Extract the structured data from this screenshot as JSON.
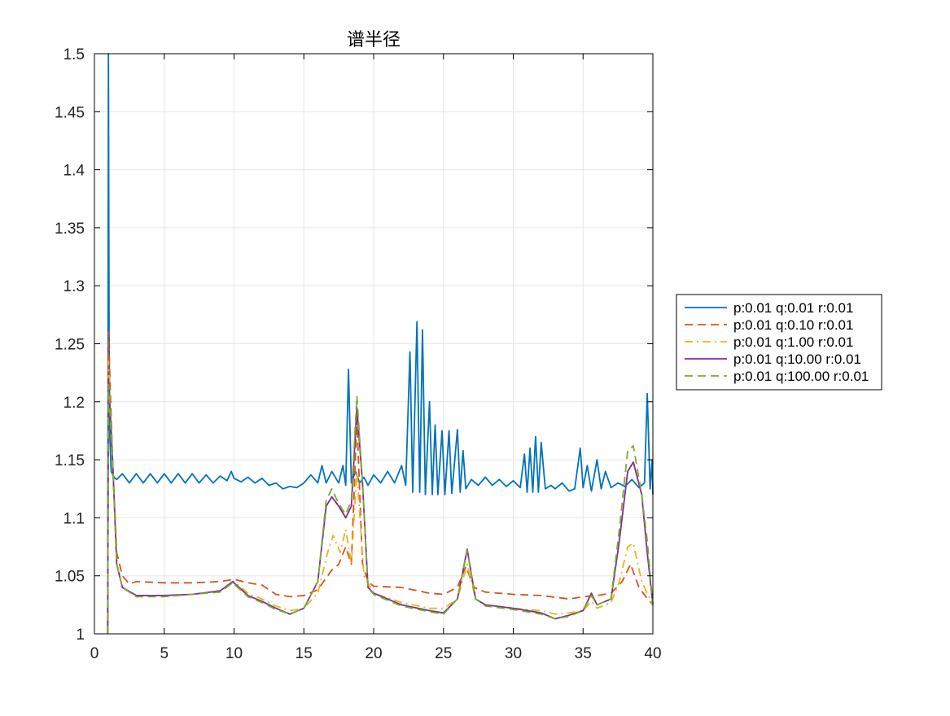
{
  "chart_data": {
    "type": "line",
    "title": "谱半径",
    "xlabel": "",
    "ylabel": "",
    "xlim": [
      0,
      40
    ],
    "ylim": [
      1,
      1.5
    ],
    "grid": true,
    "legend_position": "outside-right",
    "x_ticks": [
      "0",
      "5",
      "10",
      "15",
      "20",
      "25",
      "30",
      "35",
      "40"
    ],
    "y_ticks": [
      "1",
      "1.05",
      "1.1",
      "1.15",
      "1.2",
      "1.25",
      "1.3",
      "1.35",
      "1.4",
      "1.45",
      "1.5"
    ],
    "series": [
      {
        "name": "p:0.01 q:0.01 r:0.01",
        "color": "#0072BD",
        "dash": "solid",
        "points": [
          [
            0.95,
            1.0
          ],
          [
            1.0,
            1.5
          ],
          [
            1.05,
            1.26
          ],
          [
            1.1,
            1.17
          ],
          [
            1.2,
            1.14
          ],
          [
            1.4,
            1.135
          ],
          [
            1.6,
            1.133
          ],
          [
            2.0,
            1.138
          ],
          [
            2.5,
            1.13
          ],
          [
            3.0,
            1.138
          ],
          [
            3.5,
            1.13
          ],
          [
            4.0,
            1.138
          ],
          [
            4.5,
            1.13
          ],
          [
            5.0,
            1.138
          ],
          [
            5.5,
            1.13
          ],
          [
            6.0,
            1.138
          ],
          [
            6.5,
            1.13
          ],
          [
            7.0,
            1.138
          ],
          [
            7.5,
            1.13
          ],
          [
            8.0,
            1.137
          ],
          [
            8.5,
            1.13
          ],
          [
            9.0,
            1.136
          ],
          [
            9.5,
            1.132
          ],
          [
            9.8,
            1.14
          ],
          [
            10.0,
            1.134
          ],
          [
            10.5,
            1.131
          ],
          [
            11.0,
            1.135
          ],
          [
            11.5,
            1.13
          ],
          [
            12.0,
            1.134
          ],
          [
            12.5,
            1.128
          ],
          [
            13.0,
            1.13
          ],
          [
            13.5,
            1.125
          ],
          [
            14.0,
            1.127
          ],
          [
            14.5,
            1.126
          ],
          [
            15.0,
            1.13
          ],
          [
            15.5,
            1.137
          ],
          [
            16.0,
            1.13
          ],
          [
            16.3,
            1.145
          ],
          [
            16.6,
            1.13
          ],
          [
            17.0,
            1.14
          ],
          [
            17.5,
            1.13
          ],
          [
            17.8,
            1.145
          ],
          [
            18.0,
            1.128
          ],
          [
            18.2,
            1.228
          ],
          [
            18.4,
            1.13
          ],
          [
            18.7,
            1.14
          ],
          [
            19.0,
            1.13
          ],
          [
            19.3,
            1.135
          ],
          [
            19.6,
            1.128
          ],
          [
            20.0,
            1.137
          ],
          [
            20.5,
            1.13
          ],
          [
            21.0,
            1.14
          ],
          [
            21.5,
            1.13
          ],
          [
            22.0,
            1.145
          ],
          [
            22.3,
            1.128
          ],
          [
            22.6,
            1.243
          ],
          [
            22.8,
            1.122
          ],
          [
            23.1,
            1.269
          ],
          [
            23.3,
            1.122
          ],
          [
            23.5,
            1.262
          ],
          [
            23.7,
            1.12
          ],
          [
            24.0,
            1.2
          ],
          [
            24.2,
            1.12
          ],
          [
            24.4,
            1.18
          ],
          [
            24.6,
            1.12
          ],
          [
            24.9,
            1.175
          ],
          [
            25.1,
            1.12
          ],
          [
            25.4,
            1.175
          ],
          [
            25.6,
            1.121
          ],
          [
            26.0,
            1.176
          ],
          [
            26.2,
            1.122
          ],
          [
            26.4,
            1.158
          ],
          [
            26.6,
            1.125
          ],
          [
            27.0,
            1.133
          ],
          [
            27.5,
            1.128
          ],
          [
            28.0,
            1.135
          ],
          [
            28.5,
            1.128
          ],
          [
            29.0,
            1.133
          ],
          [
            29.5,
            1.127
          ],
          [
            30.0,
            1.132
          ],
          [
            30.5,
            1.126
          ],
          [
            30.8,
            1.155
          ],
          [
            31.0,
            1.122
          ],
          [
            31.2,
            1.16
          ],
          [
            31.4,
            1.122
          ],
          [
            31.6,
            1.17
          ],
          [
            31.8,
            1.122
          ],
          [
            32.0,
            1.165
          ],
          [
            32.3,
            1.125
          ],
          [
            32.7,
            1.128
          ],
          [
            33.0,
            1.125
          ],
          [
            33.5,
            1.13
          ],
          [
            34.0,
            1.123
          ],
          [
            34.4,
            1.125
          ],
          [
            34.8,
            1.16
          ],
          [
            35.0,
            1.126
          ],
          [
            35.3,
            1.145
          ],
          [
            35.6,
            1.123
          ],
          [
            36.0,
            1.15
          ],
          [
            36.3,
            1.125
          ],
          [
            36.6,
            1.14
          ],
          [
            37.0,
            1.126
          ],
          [
            37.5,
            1.13
          ],
          [
            38.0,
            1.127
          ],
          [
            38.5,
            1.133
          ],
          [
            39.0,
            1.126
          ],
          [
            39.4,
            1.13
          ],
          [
            39.6,
            1.207
          ],
          [
            39.8,
            1.125
          ],
          [
            39.95,
            1.15
          ],
          [
            40.0,
            1.12
          ]
        ]
      },
      {
        "name": "p:0.01 q:0.10 r:0.01",
        "color": "#D95319",
        "dash": "dashed",
        "points": [
          [
            0.95,
            1.0
          ],
          [
            1.0,
            1.26
          ],
          [
            1.3,
            1.15
          ],
          [
            1.6,
            1.07
          ],
          [
            2.0,
            1.05
          ],
          [
            2.5,
            1.043
          ],
          [
            3.0,
            1.045
          ],
          [
            5.0,
            1.044
          ],
          [
            7.0,
            1.044
          ],
          [
            9.0,
            1.045
          ],
          [
            10.0,
            1.047
          ],
          [
            11.0,
            1.044
          ],
          [
            12.0,
            1.042
          ],
          [
            13.0,
            1.034
          ],
          [
            14.0,
            1.032
          ],
          [
            15.0,
            1.033
          ],
          [
            16.0,
            1.038
          ],
          [
            17.0,
            1.055
          ],
          [
            17.5,
            1.06
          ],
          [
            18.0,
            1.075
          ],
          [
            18.4,
            1.06
          ],
          [
            18.8,
            1.185
          ],
          [
            19.2,
            1.06
          ],
          [
            19.6,
            1.045
          ],
          [
            20.0,
            1.041
          ],
          [
            22.0,
            1.04
          ],
          [
            24.0,
            1.035
          ],
          [
            25.0,
            1.034
          ],
          [
            26.0,
            1.04
          ],
          [
            26.6,
            1.058
          ],
          [
            27.2,
            1.04
          ],
          [
            28.0,
            1.036
          ],
          [
            30.0,
            1.034
          ],
          [
            32.0,
            1.033
          ],
          [
            34.0,
            1.03
          ],
          [
            35.0,
            1.032
          ],
          [
            36.0,
            1.033
          ],
          [
            37.0,
            1.035
          ],
          [
            37.8,
            1.045
          ],
          [
            38.4,
            1.06
          ],
          [
            39.0,
            1.04
          ],
          [
            39.5,
            1.032
          ],
          [
            40.0,
            1.025
          ]
        ]
      },
      {
        "name": "p:0.01 q:1.00 r:0.01",
        "color": "#EDB120",
        "dash": "dashdot",
        "points": [
          [
            0.95,
            1.0
          ],
          [
            1.0,
            1.235
          ],
          [
            1.3,
            1.15
          ],
          [
            1.6,
            1.06
          ],
          [
            2.0,
            1.04
          ],
          [
            3.0,
            1.033
          ],
          [
            5.0,
            1.033
          ],
          [
            7.0,
            1.034
          ],
          [
            9.0,
            1.037
          ],
          [
            10.0,
            1.045
          ],
          [
            11.0,
            1.035
          ],
          [
            12.0,
            1.03
          ],
          [
            13.0,
            1.024
          ],
          [
            14.0,
            1.02
          ],
          [
            15.0,
            1.022
          ],
          [
            16.0,
            1.035
          ],
          [
            16.7,
            1.07
          ],
          [
            17.1,
            1.085
          ],
          [
            17.6,
            1.07
          ],
          [
            18.0,
            1.09
          ],
          [
            18.4,
            1.06
          ],
          [
            18.8,
            1.14
          ],
          [
            19.3,
            1.05
          ],
          [
            20.0,
            1.035
          ],
          [
            22.0,
            1.027
          ],
          [
            24.0,
            1.022
          ],
          [
            25.0,
            1.022
          ],
          [
            26.0,
            1.03
          ],
          [
            26.7,
            1.06
          ],
          [
            27.3,
            1.03
          ],
          [
            28.0,
            1.025
          ],
          [
            30.0,
            1.022
          ],
          [
            32.0,
            1.02
          ],
          [
            33.0,
            1.017
          ],
          [
            34.0,
            1.018
          ],
          [
            35.0,
            1.02
          ],
          [
            35.6,
            1.028
          ],
          [
            36.0,
            1.022
          ],
          [
            37.0,
            1.027
          ],
          [
            37.6,
            1.045
          ],
          [
            38.2,
            1.075
          ],
          [
            38.6,
            1.078
          ],
          [
            39.2,
            1.045
          ],
          [
            39.6,
            1.035
          ],
          [
            40.0,
            1.025
          ]
        ]
      },
      {
        "name": "p:0.01 q:10.00 r:0.01",
        "color": "#7E2F8E",
        "dash": "solid",
        "points": [
          [
            0.95,
            1.0
          ],
          [
            1.0,
            1.22
          ],
          [
            1.3,
            1.15
          ],
          [
            1.6,
            1.06
          ],
          [
            2.0,
            1.04
          ],
          [
            3.0,
            1.033
          ],
          [
            5.0,
            1.033
          ],
          [
            7.0,
            1.034
          ],
          [
            9.0,
            1.037
          ],
          [
            9.9,
            1.045
          ],
          [
            11.0,
            1.033
          ],
          [
            12.0,
            1.028
          ],
          [
            13.0,
            1.022
          ],
          [
            14.0,
            1.017
          ],
          [
            15.0,
            1.022
          ],
          [
            16.0,
            1.045
          ],
          [
            16.6,
            1.11
          ],
          [
            17.0,
            1.118
          ],
          [
            17.5,
            1.11
          ],
          [
            18.0,
            1.1
          ],
          [
            18.4,
            1.11
          ],
          [
            18.8,
            1.195
          ],
          [
            19.2,
            1.13
          ],
          [
            19.6,
            1.04
          ],
          [
            20.0,
            1.035
          ],
          [
            22.0,
            1.025
          ],
          [
            24.0,
            1.02
          ],
          [
            25.0,
            1.018
          ],
          [
            26.0,
            1.03
          ],
          [
            26.7,
            1.073
          ],
          [
            27.3,
            1.03
          ],
          [
            28.0,
            1.025
          ],
          [
            30.0,
            1.022
          ],
          [
            32.0,
            1.018
          ],
          [
            33.0,
            1.013
          ],
          [
            34.0,
            1.016
          ],
          [
            35.0,
            1.02
          ],
          [
            35.6,
            1.035
          ],
          [
            36.0,
            1.025
          ],
          [
            37.0,
            1.03
          ],
          [
            37.6,
            1.08
          ],
          [
            38.2,
            1.14
          ],
          [
            38.6,
            1.148
          ],
          [
            39.2,
            1.12
          ],
          [
            39.6,
            1.07
          ],
          [
            40.0,
            1.025
          ]
        ]
      },
      {
        "name": "p:0.01 q:100.00 r:0.01",
        "color": "#77AC30",
        "dash": "dashed",
        "points": [
          [
            0.95,
            1.0
          ],
          [
            1.0,
            1.215
          ],
          [
            1.3,
            1.15
          ],
          [
            1.6,
            1.06
          ],
          [
            2.0,
            1.04
          ],
          [
            3.0,
            1.032
          ],
          [
            5.0,
            1.032
          ],
          [
            7.0,
            1.034
          ],
          [
            9.0,
            1.036
          ],
          [
            9.9,
            1.044
          ],
          [
            11.0,
            1.032
          ],
          [
            12.0,
            1.027
          ],
          [
            13.0,
            1.021
          ],
          [
            14.0,
            1.017
          ],
          [
            15.0,
            1.022
          ],
          [
            16.0,
            1.045
          ],
          [
            16.6,
            1.115
          ],
          [
            17.0,
            1.125
          ],
          [
            17.5,
            1.112
          ],
          [
            18.0,
            1.103
          ],
          [
            18.4,
            1.115
          ],
          [
            18.8,
            1.205
          ],
          [
            19.2,
            1.13
          ],
          [
            19.6,
            1.04
          ],
          [
            20.0,
            1.034
          ],
          [
            22.0,
            1.024
          ],
          [
            24.0,
            1.019
          ],
          [
            25.0,
            1.017
          ],
          [
            26.0,
            1.03
          ],
          [
            26.7,
            1.072
          ],
          [
            27.3,
            1.03
          ],
          [
            28.0,
            1.024
          ],
          [
            30.0,
            1.021
          ],
          [
            32.0,
            1.017
          ],
          [
            33.0,
            1.013
          ],
          [
            34.0,
            1.015
          ],
          [
            35.0,
            1.02
          ],
          [
            35.6,
            1.033
          ],
          [
            36.0,
            1.025
          ],
          [
            37.0,
            1.03
          ],
          [
            37.6,
            1.09
          ],
          [
            38.2,
            1.158
          ],
          [
            38.6,
            1.162
          ],
          [
            39.2,
            1.12
          ],
          [
            39.6,
            1.08
          ],
          [
            40.0,
            1.025
          ]
        ]
      }
    ]
  }
}
